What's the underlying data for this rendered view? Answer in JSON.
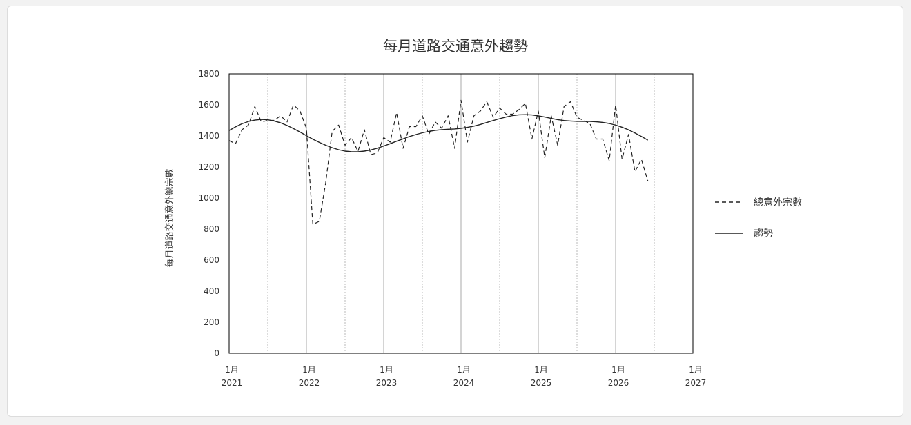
{
  "chart_data": {
    "type": "line",
    "title": "每月道路交通意外趨勢",
    "ylabel": "每月道路交通意外總宗數",
    "xlabel": "",
    "ylim": [
      0,
      1800
    ],
    "yticks": [
      0,
      200,
      400,
      600,
      800,
      1000,
      1200,
      1400,
      1600,
      1800
    ],
    "x_start": "2021-01",
    "xlim": [
      "2021-01",
      "2027-01"
    ],
    "xticks": [
      {
        "month": "1月",
        "year": "2021"
      },
      {
        "month": "1月",
        "year": "2022"
      },
      {
        "month": "1月",
        "year": "2023"
      },
      {
        "month": "1月",
        "year": "2024"
      },
      {
        "month": "1月",
        "year": "2025"
      },
      {
        "month": "1月",
        "year": "2026"
      },
      {
        "month": "1月",
        "year": "2027"
      }
    ],
    "grid": "vertical",
    "legend_position": "right",
    "series": [
      {
        "name": "總意外宗數",
        "style": "dashed",
        "color": "#222222",
        "values": [
          1370,
          1350,
          1440,
          1470,
          1590,
          1490,
          1500,
          1500,
          1530,
          1490,
          1600,
          1560,
          1450,
          830,
          850,
          1100,
          1430,
          1470,
          1340,
          1390,
          1300,
          1440,
          1280,
          1290,
          1390,
          1360,
          1550,
          1320,
          1460,
          1460,
          1530,
          1410,
          1490,
          1450,
          1530,
          1320,
          1630,
          1360,
          1530,
          1560,
          1620,
          1520,
          1580,
          1540,
          1540,
          1570,
          1610,
          1380,
          1560,
          1260,
          1530,
          1340,
          1590,
          1620,
          1520,
          1500,
          1480,
          1380,
          1380,
          1240,
          1600,
          1250,
          1410,
          1170,
          1250,
          1110
        ]
      },
      {
        "name": "趨勢",
        "style": "solid",
        "color": "#222222",
        "values": [
          1435,
          1458,
          1478,
          1493,
          1502,
          1506,
          1504,
          1496,
          1484,
          1467,
          1447,
          1425,
          1402,
          1379,
          1358,
          1340,
          1324,
          1311,
          1302,
          1298,
          1298,
          1302,
          1310,
          1321,
          1335,
          1350,
          1366,
          1381,
          1396,
          1409,
          1420,
          1429,
          1436,
          1440,
          1443,
          1445,
          1449,
          1455,
          1463,
          1474,
          1486,
          1499,
          1511,
          1522,
          1531,
          1536,
          1537,
          1535,
          1529,
          1522,
          1513,
          1505,
          1499,
          1496,
          1494,
          1493,
          1493,
          1491,
          1487,
          1480,
          1470,
          1456,
          1439,
          1419,
          1397,
          1373
        ]
      }
    ]
  }
}
